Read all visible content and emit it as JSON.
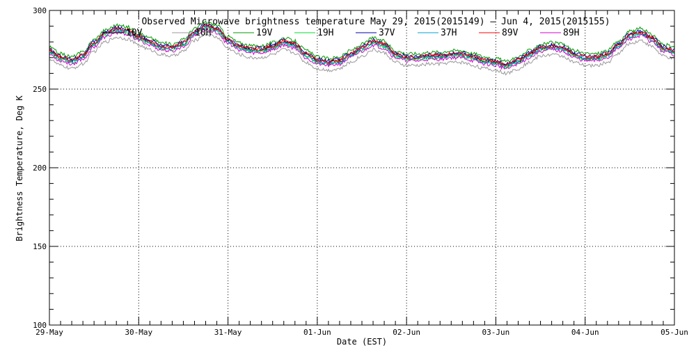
{
  "chart_data": {
    "type": "line",
    "title": "Observed Microwave brightness temperature May 29, 2015(2015149) – Jun  4, 2015(2015155)",
    "xlabel": "Date (EST)",
    "ylabel": "Brightness Temperature, Deg K",
    "ylim": [
      100,
      300
    ],
    "yticks": [
      100,
      150,
      200,
      250,
      300
    ],
    "xlim": [
      "2015-05-29",
      "2015-06-05"
    ],
    "x_tick_labels": [
      "29-May",
      "30-May",
      "31-May",
      "01-Jun",
      "02-Jun",
      "03-Jun",
      "04-Jun",
      "05-Jun"
    ],
    "grid": true,
    "legend_position": "top",
    "x": [
      "2015-05-29 00:00",
      "2015-05-29 03:00",
      "2015-05-29 06:00",
      "2015-05-29 09:00",
      "2015-05-29 12:00",
      "2015-05-29 15:00",
      "2015-05-29 18:00",
      "2015-05-29 21:00",
      "2015-05-30 00:00",
      "2015-05-30 03:00",
      "2015-05-30 06:00",
      "2015-05-30 09:00",
      "2015-05-30 12:00",
      "2015-05-30 15:00",
      "2015-05-30 18:00",
      "2015-05-30 21:00",
      "2015-05-31 00:00",
      "2015-05-31 03:00",
      "2015-05-31 06:00",
      "2015-05-31 09:00",
      "2015-05-31 12:00",
      "2015-05-31 15:00",
      "2015-05-31 18:00",
      "2015-05-31 21:00",
      "2015-06-01 00:00",
      "2015-06-01 03:00",
      "2015-06-01 06:00",
      "2015-06-01 09:00",
      "2015-06-01 12:00",
      "2015-06-01 15:00",
      "2015-06-01 18:00",
      "2015-06-01 21:00",
      "2015-06-02 00:00",
      "2015-06-02 03:00",
      "2015-06-02 06:00",
      "2015-06-02 09:00",
      "2015-06-02 12:00",
      "2015-06-02 15:00",
      "2015-06-02 18:00",
      "2015-06-02 21:00",
      "2015-06-03 00:00",
      "2015-06-03 03:00",
      "2015-06-03 06:00",
      "2015-06-03 09:00",
      "2015-06-03 12:00",
      "2015-06-03 15:00",
      "2015-06-03 18:00",
      "2015-06-03 21:00",
      "2015-06-04 00:00",
      "2015-06-04 03:00",
      "2015-06-04 06:00",
      "2015-06-04 09:00",
      "2015-06-04 12:00",
      "2015-06-04 15:00",
      "2015-06-04 18:00",
      "2015-06-04 21:00",
      "2015-06-05 00:00"
    ],
    "base_profile": [
      274,
      270,
      268,
      271,
      279,
      285,
      288,
      287,
      283,
      280,
      277,
      276,
      279,
      286,
      290,
      288,
      281,
      277,
      275,
      275,
      277,
      280,
      278,
      272,
      268,
      267,
      268,
      272,
      276,
      280,
      278,
      272,
      270,
      270,
      271,
      271,
      272,
      272,
      270,
      268,
      267,
      265,
      268,
      272,
      276,
      277,
      276,
      272,
      270,
      270,
      272,
      278,
      284,
      286,
      282,
      276,
      274
    ],
    "series": [
      {
        "name": "10V",
        "color": "#000000",
        "offset": 0.0
      },
      {
        "name": "10H",
        "color": "#9a9a9a",
        "offset": -5.0
      },
      {
        "name": "19V",
        "color": "#009900",
        "offset": 2.5
      },
      {
        "name": "19H",
        "color": "#00dd33",
        "offset": -1.0
      },
      {
        "name": "37V",
        "color": "#0000aa",
        "offset": 1.0
      },
      {
        "name": "37H",
        "color": "#00a0d0",
        "offset": -0.5
      },
      {
        "name": "89V",
        "color": "#ff0000",
        "offset": 0.5
      },
      {
        "name": "89H",
        "color": "#d000d0",
        "offset": -2.0
      }
    ]
  }
}
